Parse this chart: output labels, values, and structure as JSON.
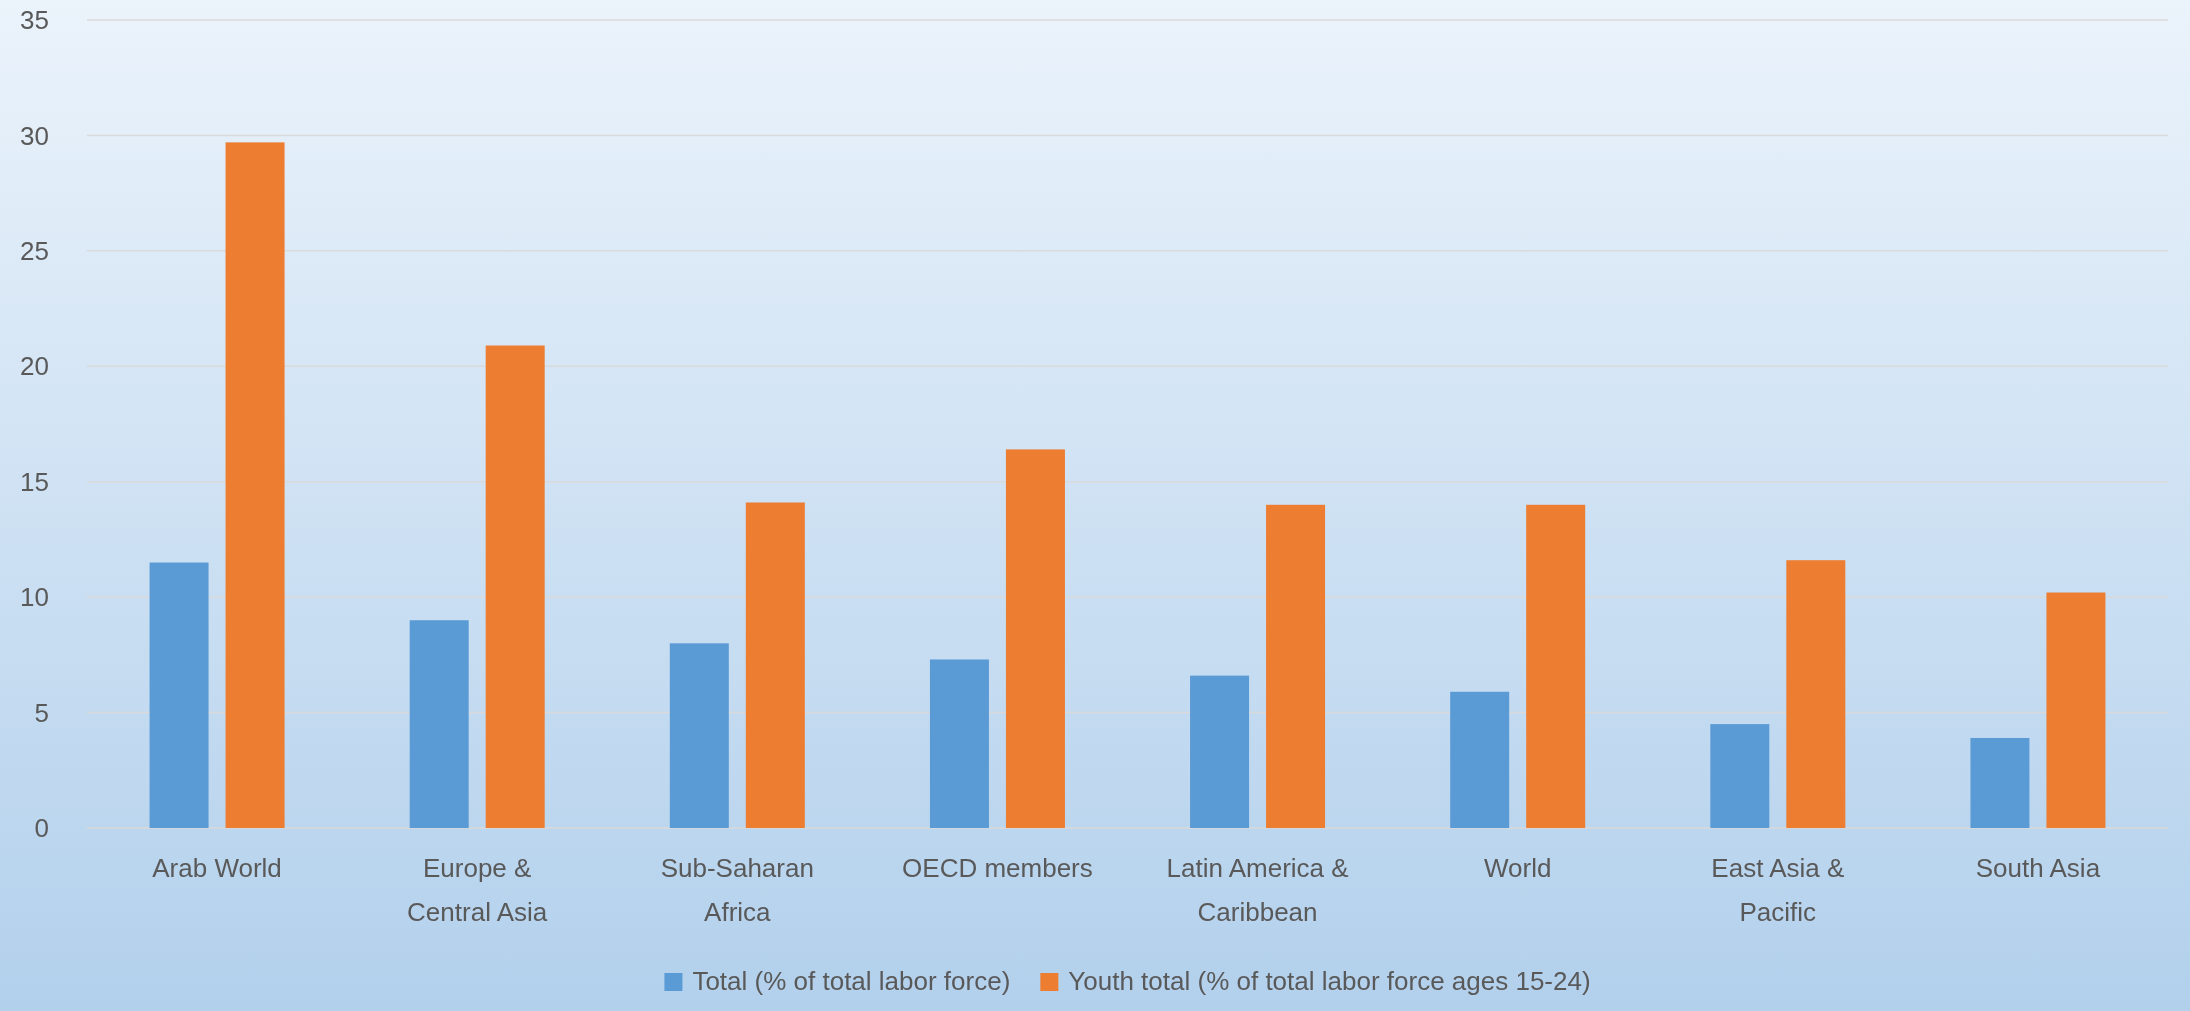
{
  "chart_data": {
    "type": "bar",
    "categories": [
      "Arab World",
      "Europe & Central Asia",
      "Sub-Saharan Africa",
      "OECD members",
      "Latin America & Caribbean",
      "World",
      "East Asia & Pacific",
      "South Asia"
    ],
    "series": [
      {
        "name": "Total (% of total labor force)",
        "color": "#5b9bd5",
        "values": [
          11.5,
          9.0,
          8.0,
          7.3,
          6.6,
          5.9,
          4.5,
          3.9
        ]
      },
      {
        "name": "Youth total (% of total labor force ages 15-24)",
        "color": "#ed7d31",
        "values": [
          29.7,
          20.9,
          14.1,
          16.4,
          14.0,
          14.0,
          11.6,
          10.2
        ]
      }
    ],
    "ylim": [
      0,
      35
    ],
    "yticks": [
      0,
      5,
      10,
      15,
      20,
      25,
      30,
      35
    ],
    "grid": "y",
    "legend": "bottom"
  }
}
